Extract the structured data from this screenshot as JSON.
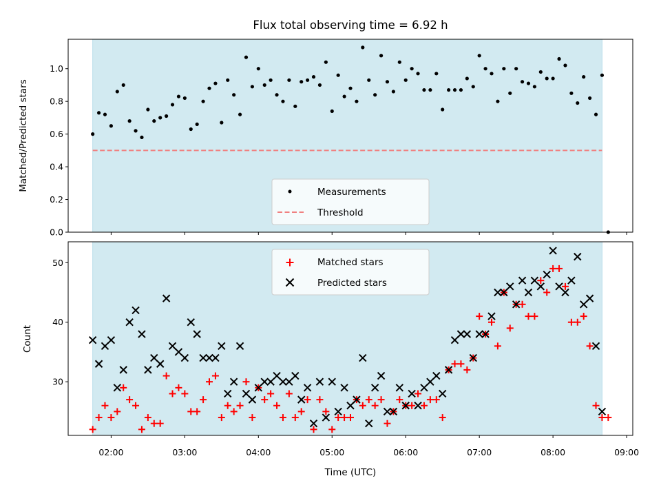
{
  "chart_data": [
    {
      "type": "scatter",
      "title": "Flux total observing time = 6.92 h",
      "xlabel": "",
      "ylabel": "Matched/Predicted stars",
      "ylim": [
        0,
        1.18
      ],
      "yticks": [
        "0.0",
        "0.2",
        "0.4",
        "0.6",
        "0.8",
        "1.0"
      ],
      "xlim": [
        "01:25",
        "09:05"
      ],
      "observing_window": [
        "01:45",
        "08:40"
      ],
      "threshold": 0.5,
      "colors": {
        "points": "#000000",
        "threshold": "#f08080",
        "band": "#add8e6"
      },
      "legend": {
        "position": "lower-center",
        "entries": [
          "Measurements",
          "Threshold"
        ]
      },
      "series": [
        {
          "name": "Measurements",
          "x": [
            "01:45",
            "01:50",
            "01:55",
            "02:00",
            "02:05",
            "02:10",
            "02:15",
            "02:20",
            "02:25",
            "02:30",
            "02:35",
            "02:40",
            "02:45",
            "02:50",
            "02:55",
            "03:00",
            "03:05",
            "03:10",
            "03:15",
            "03:20",
            "03:25",
            "03:30",
            "03:35",
            "03:40",
            "03:45",
            "03:50",
            "03:55",
            "04:00",
            "04:05",
            "04:10",
            "04:15",
            "04:20",
            "04:25",
            "04:30",
            "04:35",
            "04:40",
            "04:45",
            "04:50",
            "04:55",
            "05:00",
            "05:05",
            "05:10",
            "05:15",
            "05:20",
            "05:25",
            "05:30",
            "05:35",
            "05:40",
            "05:45",
            "05:50",
            "05:55",
            "06:00",
            "06:05",
            "06:10",
            "06:15",
            "06:20",
            "06:25",
            "06:30",
            "06:35",
            "06:40",
            "06:45",
            "06:50",
            "06:55",
            "07:00",
            "07:05",
            "07:10",
            "07:15",
            "07:20",
            "07:25",
            "07:30",
            "07:35",
            "07:40",
            "07:45",
            "07:50",
            "07:55",
            "08:00",
            "08:05",
            "08:10",
            "08:15",
            "08:20",
            "08:25",
            "08:30",
            "08:35",
            "08:40",
            "08:45"
          ],
          "values": [
            0.6,
            0.73,
            0.72,
            0.65,
            0.86,
            0.9,
            0.68,
            0.62,
            0.58,
            0.75,
            0.68,
            0.7,
            0.71,
            0.78,
            0.83,
            0.82,
            0.63,
            0.66,
            0.8,
            0.88,
            0.91,
            0.67,
            0.93,
            0.84,
            0.72,
            1.07,
            0.89,
            1.0,
            0.9,
            0.93,
            0.84,
            0.8,
            0.93,
            0.77,
            0.92,
            0.93,
            0.95,
            0.9,
            1.04,
            0.74,
            0.96,
            0.83,
            0.88,
            0.8,
            1.13,
            0.93,
            0.84,
            1.08,
            0.92,
            0.86,
            1.04,
            0.93,
            1.0,
            0.97,
            0.87,
            0.87,
            0.97,
            0.75,
            0.87,
            0.87,
            0.87,
            0.94,
            0.89,
            1.08,
            1.0,
            0.97,
            0.8,
            1.0,
            0.85,
            1.0,
            0.92,
            0.91,
            0.89,
            0.98,
            0.94,
            0.94,
            1.06,
            1.02,
            0.85,
            0.79,
            0.95,
            0.82,
            0.72,
            0.96,
            0.0
          ]
        }
      ]
    },
    {
      "type": "scatter",
      "title": "",
      "xlabel": "Time (UTC)",
      "ylabel": "Count",
      "ylim": [
        21,
        53.5
      ],
      "yticks": [
        "30",
        "40",
        "50"
      ],
      "xlim": [
        "01:25",
        "09:05"
      ],
      "xticks": [
        "02:00",
        "03:00",
        "04:00",
        "05:00",
        "06:00",
        "07:00",
        "08:00",
        "09:00"
      ],
      "observing_window": [
        "01:45",
        "08:40"
      ],
      "colors": {
        "matched": "#ff0000",
        "predicted": "#000000",
        "band": "#add8e6"
      },
      "legend": {
        "position": "upper-center",
        "entries": [
          "Matched stars",
          "Predicted stars"
        ]
      },
      "x": [
        "01:45",
        "01:50",
        "01:55",
        "02:00",
        "02:05",
        "02:10",
        "02:15",
        "02:20",
        "02:25",
        "02:30",
        "02:35",
        "02:40",
        "02:45",
        "02:50",
        "02:55",
        "03:00",
        "03:05",
        "03:10",
        "03:15",
        "03:20",
        "03:25",
        "03:30",
        "03:35",
        "03:40",
        "03:45",
        "03:50",
        "03:55",
        "04:00",
        "04:05",
        "04:10",
        "04:15",
        "04:20",
        "04:25",
        "04:30",
        "04:35",
        "04:40",
        "04:45",
        "04:50",
        "04:55",
        "05:00",
        "05:05",
        "05:10",
        "05:15",
        "05:20",
        "05:25",
        "05:30",
        "05:35",
        "05:40",
        "05:45",
        "05:50",
        "05:55",
        "06:00",
        "06:05",
        "06:10",
        "06:15",
        "06:20",
        "06:25",
        "06:30",
        "06:35",
        "06:40",
        "06:45",
        "06:50",
        "06:55",
        "07:00",
        "07:05",
        "07:10",
        "07:15",
        "07:20",
        "07:25",
        "07:30",
        "07:35",
        "07:40",
        "07:45",
        "07:50",
        "07:55",
        "08:00",
        "08:05",
        "08:10",
        "08:15",
        "08:20",
        "08:25",
        "08:30",
        "08:35",
        "08:40"
      ],
      "series": [
        {
          "name": "Matched stars",
          "values": [
            22,
            24,
            26,
            24,
            25,
            29,
            27,
            26,
            22,
            24,
            23,
            23,
            31,
            28,
            29,
            28,
            25,
            25,
            27,
            30,
            31,
            24,
            26,
            25,
            26,
            30,
            24,
            29,
            27,
            28,
            26,
            24,
            28,
            24,
            25,
            27,
            22,
            27,
            25,
            22,
            24,
            24,
            24,
            27,
            26,
            27,
            26,
            27,
            23,
            25,
            27,
            26,
            26,
            28,
            26,
            27,
            27,
            24,
            32,
            33,
            33,
            32,
            34,
            41,
            38,
            40,
            36,
            45,
            39,
            43,
            43,
            41,
            41,
            47,
            45,
            49,
            49,
            46,
            40,
            40,
            41,
            36,
            26,
            24
          ],
          "extra_points": [
            [
              "08:45",
              24
            ]
          ]
        },
        {
          "name": "Predicted stars",
          "values": [
            37,
            33,
            36,
            37,
            29,
            32,
            40,
            42,
            38,
            32,
            34,
            33,
            44,
            36,
            35,
            34,
            40,
            38,
            34,
            34,
            34,
            36,
            28,
            30,
            36,
            28,
            27,
            29,
            30,
            30,
            31,
            30,
            30,
            31,
            27,
            29,
            23,
            30,
            24,
            30,
            25,
            29,
            26,
            27,
            34,
            23,
            29,
            31,
            25,
            25,
            29,
            26,
            28,
            26,
            29,
            30,
            31,
            28,
            32,
            37,
            38,
            38,
            34,
            38,
            38,
            41,
            45,
            45,
            46,
            43,
            47,
            45,
            47,
            46,
            48,
            52,
            46,
            45,
            47,
            51,
            43,
            44,
            36,
            25
          ]
        }
      ]
    }
  ]
}
